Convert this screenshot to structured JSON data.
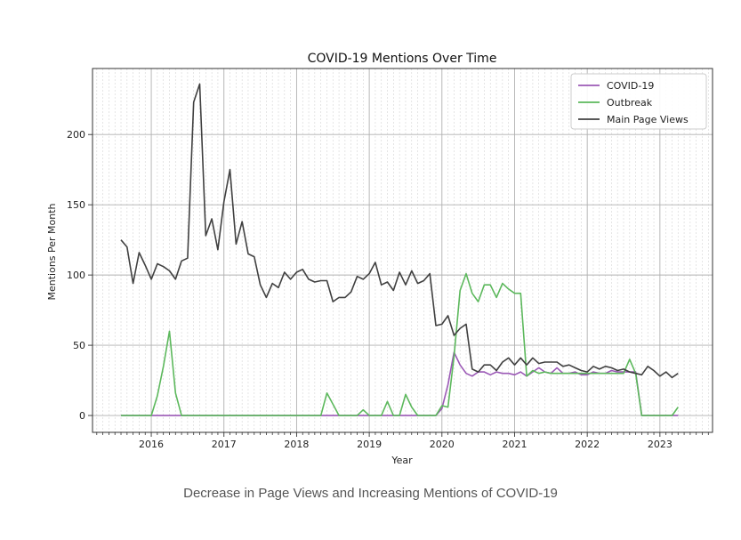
{
  "caption": "Decrease in Page Views and Increasing Mentions of COVID-19",
  "chart_data": {
    "type": "line",
    "title": "COVID-19 Mentions Over Time",
    "xlabel": "Year",
    "ylabel": "Mentions Per Month",
    "xlim": [
      "2015-03-10",
      "2023-09-22"
    ],
    "ylim": [
      -12,
      247
    ],
    "x_ticks": [
      "2016",
      "2017",
      "2018",
      "2019",
      "2020",
      "2021",
      "2022",
      "2023"
    ],
    "y_ticks": [
      0,
      50,
      100,
      150,
      200
    ],
    "grid": true,
    "legend": "top-right",
    "series": [
      {
        "name": "COVID-19",
        "color": "#9b59b6",
        "points": [
          [
            "2015-08-01",
            0
          ],
          [
            "2019-12-01",
            0
          ],
          [
            "2020-01-01",
            5
          ],
          [
            "2020-02-01",
            22
          ],
          [
            "2020-03-01",
            45
          ],
          [
            "2020-04-01",
            36
          ],
          [
            "2020-05-01",
            30
          ],
          [
            "2020-06-01",
            28
          ],
          [
            "2020-07-01",
            31
          ],
          [
            "2020-08-01",
            31
          ],
          [
            "2020-09-01",
            29
          ],
          [
            "2020-10-01",
            31
          ],
          [
            "2020-11-01",
            30
          ],
          [
            "2020-12-01",
            30
          ],
          [
            "2021-01-01",
            29
          ],
          [
            "2021-02-01",
            31
          ],
          [
            "2021-03-01",
            28
          ],
          [
            "2021-04-01",
            31
          ],
          [
            "2021-05-01",
            34
          ],
          [
            "2021-06-01",
            31
          ],
          [
            "2021-07-01",
            30
          ],
          [
            "2021-08-01",
            34
          ],
          [
            "2021-09-01",
            30
          ],
          [
            "2021-10-01",
            30
          ],
          [
            "2021-11-01",
            31
          ],
          [
            "2021-12-01",
            29
          ],
          [
            "2022-01-01",
            29
          ],
          [
            "2022-02-01",
            31
          ],
          [
            "2022-03-01",
            30
          ],
          [
            "2022-04-01",
            30
          ],
          [
            "2022-05-01",
            32
          ],
          [
            "2022-06-01",
            31
          ],
          [
            "2022-07-01",
            31
          ],
          [
            "2022-08-01",
            31
          ],
          [
            "2022-09-01",
            31
          ],
          [
            "2022-10-01",
            0
          ],
          [
            "2023-04-01",
            0
          ]
        ]
      },
      {
        "name": "Outbreak",
        "color": "#5cb85c",
        "points": [
          [
            "2015-08-01",
            0
          ],
          [
            "2015-09-01",
            0
          ],
          [
            "2015-10-01",
            0
          ],
          [
            "2015-11-01",
            0
          ],
          [
            "2015-12-01",
            0
          ],
          [
            "2016-01-01",
            0
          ],
          [
            "2016-02-01",
            14
          ],
          [
            "2016-03-01",
            35
          ],
          [
            "2016-04-01",
            60
          ],
          [
            "2016-05-01",
            16
          ],
          [
            "2016-06-01",
            0
          ],
          [
            "2018-05-01",
            0
          ],
          [
            "2018-06-01",
            16
          ],
          [
            "2018-07-01",
            8
          ],
          [
            "2018-08-01",
            0
          ],
          [
            "2018-11-01",
            0
          ],
          [
            "2018-12-01",
            4
          ],
          [
            "2019-01-01",
            0
          ],
          [
            "2019-03-01",
            0
          ],
          [
            "2019-04-01",
            10
          ],
          [
            "2019-05-01",
            0
          ],
          [
            "2019-06-01",
            0
          ],
          [
            "2019-07-01",
            15
          ],
          [
            "2019-08-01",
            6
          ],
          [
            "2019-09-01",
            0
          ],
          [
            "2019-12-01",
            0
          ],
          [
            "2020-01-01",
            7
          ],
          [
            "2020-02-01",
            6
          ],
          [
            "2020-03-01",
            42
          ],
          [
            "2020-04-01",
            89
          ],
          [
            "2020-05-01",
            101
          ],
          [
            "2020-06-01",
            87
          ],
          [
            "2020-07-01",
            81
          ],
          [
            "2020-08-01",
            93
          ],
          [
            "2020-09-01",
            93
          ],
          [
            "2020-10-01",
            84
          ],
          [
            "2020-11-01",
            94
          ],
          [
            "2020-12-01",
            90
          ],
          [
            "2021-01-01",
            87
          ],
          [
            "2021-02-01",
            87
          ],
          [
            "2021-03-01",
            28
          ],
          [
            "2021-04-01",
            32
          ],
          [
            "2021-05-01",
            30
          ],
          [
            "2021-06-01",
            31
          ],
          [
            "2021-07-01",
            30
          ],
          [
            "2021-08-01",
            30
          ],
          [
            "2021-09-01",
            30
          ],
          [
            "2021-10-01",
            30
          ],
          [
            "2021-11-01",
            30
          ],
          [
            "2021-12-01",
            30
          ],
          [
            "2022-01-01",
            30
          ],
          [
            "2022-02-01",
            30
          ],
          [
            "2022-03-01",
            30
          ],
          [
            "2022-04-01",
            30
          ],
          [
            "2022-05-01",
            30
          ],
          [
            "2022-06-01",
            30
          ],
          [
            "2022-07-01",
            30
          ],
          [
            "2022-08-01",
            40
          ],
          [
            "2022-09-01",
            30
          ],
          [
            "2022-10-01",
            0
          ],
          [
            "2023-03-01",
            0
          ],
          [
            "2023-04-01",
            6
          ]
        ]
      },
      {
        "name": "Main Page Views",
        "color": "#404040",
        "points": [
          [
            "2015-08-01",
            125
          ],
          [
            "2015-09-01",
            120
          ],
          [
            "2015-10-01",
            94
          ],
          [
            "2015-11-01",
            116
          ],
          [
            "2015-12-01",
            107
          ],
          [
            "2016-01-01",
            97
          ],
          [
            "2016-02-01",
            108
          ],
          [
            "2016-03-01",
            106
          ],
          [
            "2016-04-01",
            103
          ],
          [
            "2016-05-01",
            97
          ],
          [
            "2016-06-01",
            110
          ],
          [
            "2016-07-01",
            112
          ],
          [
            "2016-08-01",
            223
          ],
          [
            "2016-09-01",
            236
          ],
          [
            "2016-10-01",
            128
          ],
          [
            "2016-11-01",
            140
          ],
          [
            "2016-12-01",
            118
          ],
          [
            "2017-01-01",
            152
          ],
          [
            "2017-02-01",
            175
          ],
          [
            "2017-03-01",
            122
          ],
          [
            "2017-04-01",
            138
          ],
          [
            "2017-05-01",
            115
          ],
          [
            "2017-06-01",
            113
          ],
          [
            "2017-07-01",
            93
          ],
          [
            "2017-08-01",
            84
          ],
          [
            "2017-09-01",
            94
          ],
          [
            "2017-10-01",
            91
          ],
          [
            "2017-11-01",
            102
          ],
          [
            "2017-12-01",
            97
          ],
          [
            "2018-01-01",
            102
          ],
          [
            "2018-02-01",
            104
          ],
          [
            "2018-03-01",
            97
          ],
          [
            "2018-04-01",
            95
          ],
          [
            "2018-05-01",
            96
          ],
          [
            "2018-06-01",
            96
          ],
          [
            "2018-07-01",
            81
          ],
          [
            "2018-08-01",
            84
          ],
          [
            "2018-09-01",
            84
          ],
          [
            "2018-10-01",
            88
          ],
          [
            "2018-11-01",
            99
          ],
          [
            "2018-12-01",
            97
          ],
          [
            "2019-01-01",
            101
          ],
          [
            "2019-02-01",
            109
          ],
          [
            "2019-03-01",
            93
          ],
          [
            "2019-04-01",
            95
          ],
          [
            "2019-05-01",
            89
          ],
          [
            "2019-06-01",
            102
          ],
          [
            "2019-07-01",
            93
          ],
          [
            "2019-08-01",
            103
          ],
          [
            "2019-09-01",
            94
          ],
          [
            "2019-10-01",
            96
          ],
          [
            "2019-11-01",
            101
          ],
          [
            "2019-12-01",
            64
          ],
          [
            "2020-01-01",
            65
          ],
          [
            "2020-02-01",
            71
          ],
          [
            "2020-03-01",
            57
          ],
          [
            "2020-04-01",
            62
          ],
          [
            "2020-05-01",
            65
          ],
          [
            "2020-06-01",
            33
          ],
          [
            "2020-07-01",
            31
          ],
          [
            "2020-08-01",
            36
          ],
          [
            "2020-09-01",
            36
          ],
          [
            "2020-10-01",
            32
          ],
          [
            "2020-11-01",
            38
          ],
          [
            "2020-12-01",
            41
          ],
          [
            "2021-01-01",
            36
          ],
          [
            "2021-02-01",
            41
          ],
          [
            "2021-03-01",
            36
          ],
          [
            "2021-04-01",
            41
          ],
          [
            "2021-05-01",
            37
          ],
          [
            "2021-06-01",
            38
          ],
          [
            "2021-07-01",
            38
          ],
          [
            "2021-08-01",
            38
          ],
          [
            "2021-09-01",
            35
          ],
          [
            "2021-10-01",
            36
          ],
          [
            "2021-11-01",
            34
          ],
          [
            "2021-12-01",
            32
          ],
          [
            "2022-01-01",
            31
          ],
          [
            "2022-02-01",
            35
          ],
          [
            "2022-03-01",
            33
          ],
          [
            "2022-04-01",
            35
          ],
          [
            "2022-05-01",
            34
          ],
          [
            "2022-06-01",
            32
          ],
          [
            "2022-07-01",
            33
          ],
          [
            "2022-08-01",
            31
          ],
          [
            "2022-09-01",
            30
          ],
          [
            "2022-10-01",
            29
          ],
          [
            "2022-11-01",
            35
          ],
          [
            "2022-12-01",
            32
          ],
          [
            "2023-01-01",
            28
          ],
          [
            "2023-02-01",
            31
          ],
          [
            "2023-03-01",
            27
          ],
          [
            "2023-04-01",
            30
          ]
        ]
      }
    ]
  }
}
